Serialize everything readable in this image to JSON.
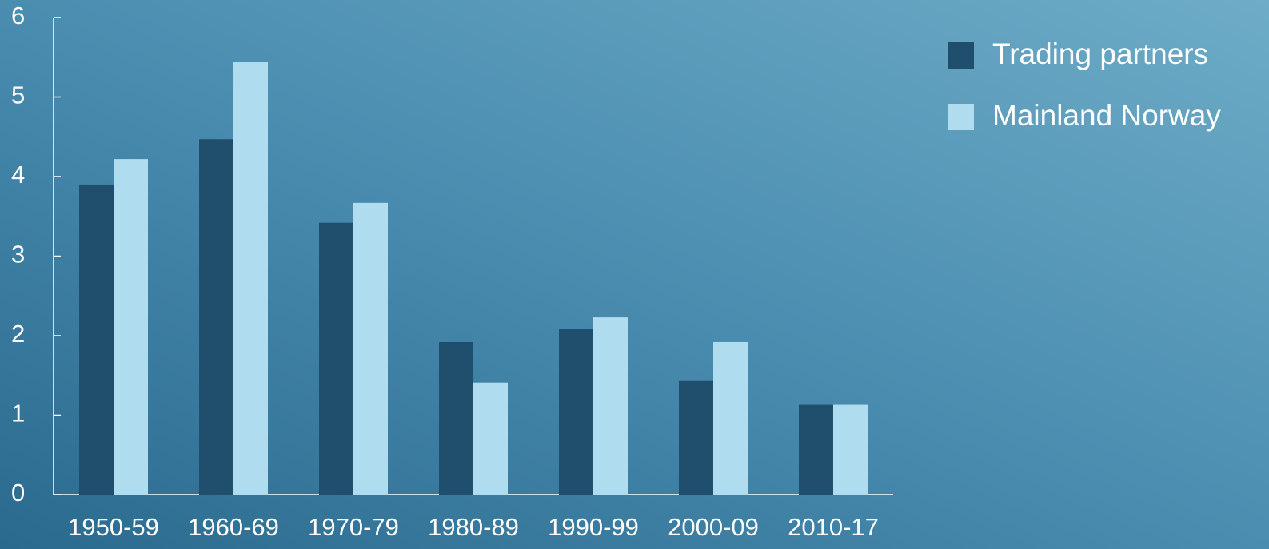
{
  "chart_data": {
    "type": "bar",
    "categories": [
      "1950-59",
      "1960-69",
      "1970-79",
      "1980-89",
      "1990-99",
      "2000-09",
      "2010-17"
    ],
    "series": [
      {
        "name": "Trading partners",
        "color": "#1f4f6c",
        "values": [
          3.9,
          4.47,
          3.42,
          1.92,
          2.08,
          1.43,
          1.13
        ]
      },
      {
        "name": "Mainland Norway",
        "color": "#b0dcef",
        "values": [
          4.22,
          5.44,
          3.67,
          1.41,
          2.23,
          1.92,
          1.13
        ]
      }
    ],
    "ylim": [
      0,
      6
    ],
    "yticks": [
      0,
      1,
      2,
      3,
      4,
      5,
      6
    ],
    "grid": false,
    "legend": "top-right"
  }
}
